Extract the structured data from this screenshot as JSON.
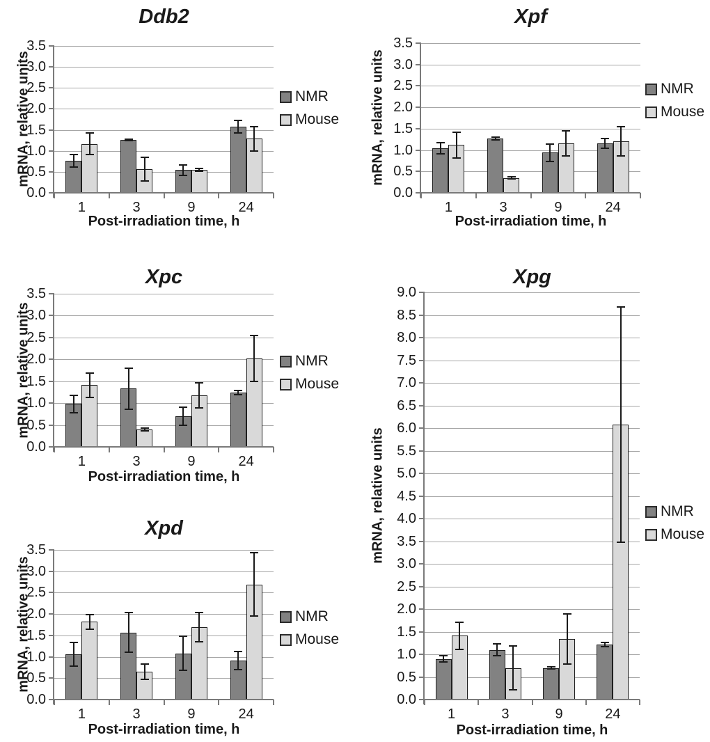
{
  "figure": {
    "description": "Five grouped bar charts of NER gene mRNA expression (NMR vs Mouse) after irradiation"
  },
  "colors": {
    "nmr_fill": "#828282",
    "mouse_fill": "#d9d9d9",
    "bar_border": "#1f1f1f",
    "gridline": "#a6a6a6",
    "axis": "#7a7a7a",
    "error_bar": "#1a1a1a",
    "text": "#1a1a1a",
    "background": "#ffffff"
  },
  "chart_data": [
    {
      "id": "ddb2",
      "type": "bar",
      "title": "Ddb2",
      "xlabel": "Post-irradiation time, h",
      "ylabel": "mRNA, relative units",
      "categories": [
        "1",
        "3",
        "9",
        "24"
      ],
      "ylim": [
        0,
        3.5
      ],
      "ystep": 0.5,
      "grid": true,
      "legend_position": "right",
      "legend": [
        "NMR",
        "Mouse"
      ],
      "series": [
        {
          "name": "NMR",
          "values": [
            0.76,
            1.26,
            0.54,
            1.57
          ],
          "errors": [
            0.15,
            0.02,
            0.12,
            0.15
          ]
        },
        {
          "name": "Mouse",
          "values": [
            1.17,
            0.57,
            0.55,
            1.29
          ],
          "errors": [
            0.25,
            0.28,
            0.03,
            0.29
          ]
        }
      ]
    },
    {
      "id": "xpf",
      "type": "bar",
      "title": "Xpf",
      "xlabel": "Post-irradiation time, h",
      "ylabel": "mRNA, relative units",
      "categories": [
        "1",
        "3",
        "9",
        "24"
      ],
      "ylim": [
        0,
        3.5
      ],
      "ystep": 0.5,
      "grid": true,
      "legend_position": "right",
      "legend": [
        "NMR",
        "Mouse"
      ],
      "series": [
        {
          "name": "NMR",
          "values": [
            1.05,
            1.27,
            0.94,
            1.16
          ],
          "errors": [
            0.13,
            0.04,
            0.2,
            0.11
          ]
        },
        {
          "name": "Mouse",
          "values": [
            1.12,
            0.35,
            1.16,
            1.21
          ],
          "errors": [
            0.3,
            0.03,
            0.29,
            0.34
          ]
        }
      ]
    },
    {
      "id": "xpc",
      "type": "bar",
      "title": "Xpc",
      "xlabel": "Post-irradiation time, h",
      "ylabel": "mRNA, relative units",
      "categories": [
        "1",
        "3",
        "9",
        "24"
      ],
      "ylim": [
        0,
        3.5
      ],
      "ystep": 0.5,
      "grid": true,
      "legend_position": "right",
      "legend": [
        "NMR",
        "Mouse"
      ],
      "series": [
        {
          "name": "NMR",
          "values": [
            0.98,
            1.33,
            0.7,
            1.24
          ],
          "errors": [
            0.2,
            0.47,
            0.2,
            0.05
          ]
        },
        {
          "name": "Mouse",
          "values": [
            1.41,
            0.4,
            1.18,
            2.02
          ],
          "errors": [
            0.28,
            0.03,
            0.29,
            0.52
          ]
        }
      ]
    },
    {
      "id": "xpd",
      "type": "bar",
      "title": "Xpd",
      "xlabel": "Post-irradiation time, h",
      "ylabel": "mRNA, relative units",
      "categories": [
        "1",
        "3",
        "9",
        "24"
      ],
      "ylim": [
        0,
        3.5
      ],
      "ystep": 0.5,
      "grid": true,
      "legend_position": "right",
      "legend": [
        "NMR",
        "Mouse"
      ],
      "series": [
        {
          "name": "NMR",
          "values": [
            1.06,
            1.57,
            1.08,
            0.91
          ],
          "errors": [
            0.28,
            0.47,
            0.4,
            0.21
          ]
        },
        {
          "name": "Mouse",
          "values": [
            1.82,
            0.65,
            1.69,
            2.69
          ],
          "errors": [
            0.17,
            0.18,
            0.34,
            0.74
          ]
        }
      ]
    },
    {
      "id": "xpg",
      "type": "bar",
      "title": "Xpg",
      "xlabel": "Post-irradiation time, h",
      "ylabel": "mRNA, relative units",
      "categories": [
        "1",
        "3",
        "9",
        "24"
      ],
      "ylim": [
        0,
        9.0
      ],
      "ystep": 0.5,
      "grid": true,
      "legend_position": "right",
      "legend": [
        "NMR",
        "Mouse"
      ],
      "series": [
        {
          "name": "NMR",
          "values": [
            0.9,
            1.1,
            0.7,
            1.22
          ],
          "errors": [
            0.07,
            0.13,
            0.02,
            0.05
          ]
        },
        {
          "name": "Mouse",
          "values": [
            1.41,
            0.7,
            1.34,
            6.08
          ],
          "errors": [
            0.3,
            0.48,
            0.55,
            2.6
          ]
        }
      ]
    }
  ]
}
